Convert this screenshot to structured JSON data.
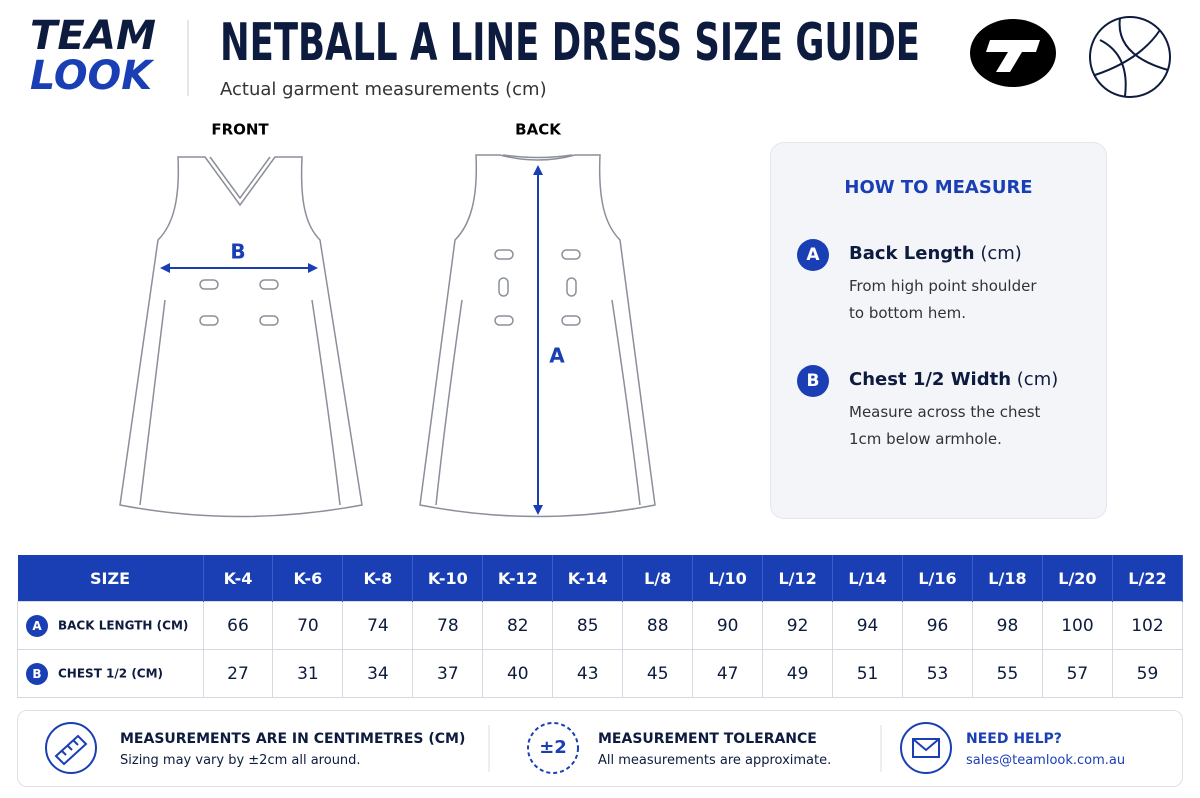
{
  "header": {
    "logo": [
      "TEAM",
      "LOOK"
    ],
    "title": "NETBALL A LINE DRESS SIZE GUIDE",
    "subtitle": "Actual garment measurements (cm)"
  },
  "diagram": {
    "front_label": "FRONT",
    "back_label": "BACK",
    "front_marker": "B",
    "back_marker": "A"
  },
  "how_to_measure": {
    "title": "HOW TO MEASURE",
    "items": [
      {
        "badge": "A",
        "name": "Back Length",
        "unit": "(cm)",
        "lines": [
          "From high point shoulder",
          "to bottom hem."
        ]
      },
      {
        "badge": "B",
        "name": "Chest 1/2 Width",
        "unit": "(cm)",
        "lines": [
          "Measure across the chest",
          "1cm below armhole."
        ]
      }
    ]
  },
  "table": {
    "header": [
      "SIZE",
      "K-4",
      "K-6",
      "K-8",
      "K-10",
      "K-12",
      "K-14",
      "L/8",
      "L/10",
      "L/12",
      "L/14",
      "L/16",
      "L/18",
      "L/20",
      "L/22"
    ],
    "rows": [
      {
        "badge": "A",
        "label": "BACK LENGTH (CM)",
        "values": [
          66,
          70,
          74,
          78,
          82,
          85,
          88,
          90,
          92,
          94,
          96,
          98,
          100,
          102
        ]
      },
      {
        "badge": "B",
        "label": "CHEST 1/2 (CM)",
        "values": [
          27,
          31,
          34,
          37,
          40,
          43,
          45,
          47,
          49,
          51,
          53,
          55,
          57,
          59
        ]
      }
    ]
  },
  "footer": [
    {
      "title": "MEASUREMENTS ARE IN CENTIMETRES (CM)",
      "text": "Sizing may vary by ±2cm all around."
    },
    {
      "icon": "±2",
      "title": "MEASUREMENT TOLERANCE",
      "text": "All measurements are approximate."
    },
    {
      "title": "NEED HELP?",
      "text": "sales@teamlook.com.au"
    }
  ]
}
